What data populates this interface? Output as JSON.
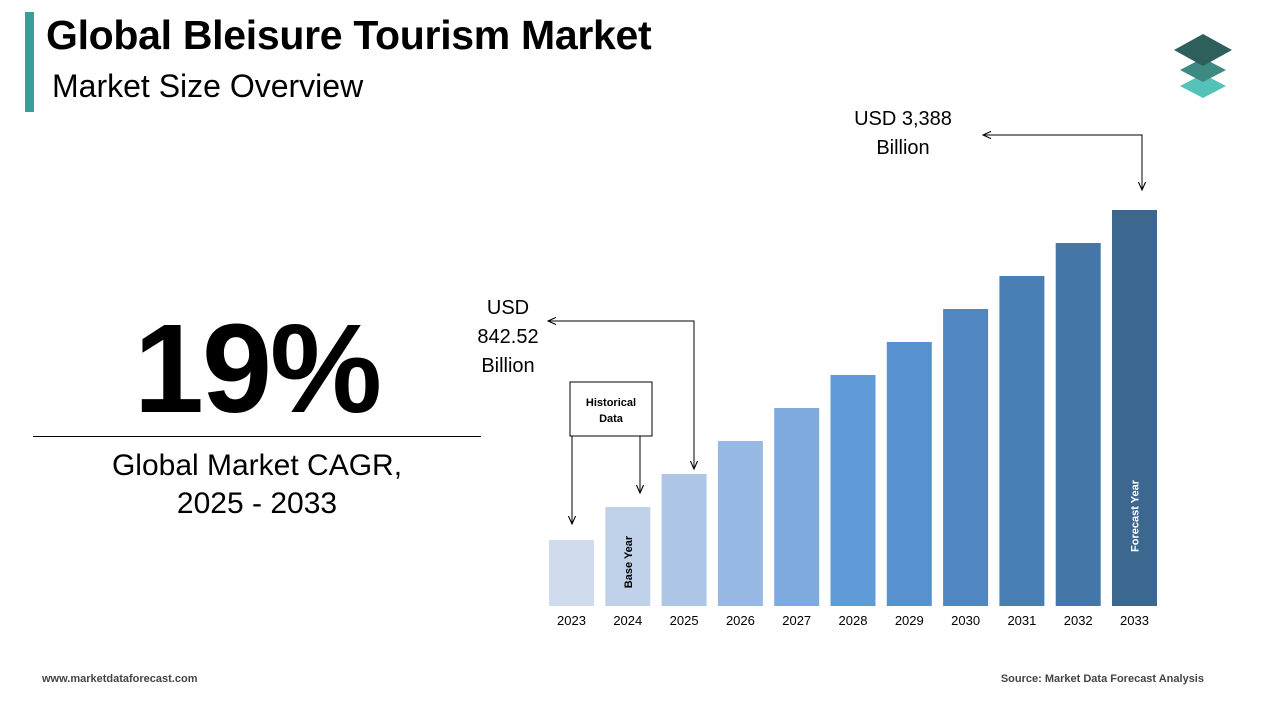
{
  "header": {
    "title": "Global Bleisure Tourism Market",
    "subtitle": "Market Size Overview"
  },
  "cagr": {
    "value": "19%",
    "label_line1": "Global Market CAGR,",
    "label_line2": "2025 - 2033"
  },
  "chart_data": {
    "type": "bar",
    "categories": [
      "2023",
      "2024",
      "2025",
      "2026",
      "2027",
      "2028",
      "2029",
      "2030",
      "2031",
      "2032",
      "2033"
    ],
    "values": [
      1,
      2,
      3,
      4,
      5,
      6,
      7,
      8,
      9,
      10,
      11
    ],
    "values_note_hidden": true,
    "colors": [
      "#d0dcee",
      "#c0d2ea",
      "#adc6e6",
      "#96b8e2",
      "#7eaae0",
      "#5f9bd9",
      "#5891cf",
      "#5087c2",
      "#4a7fb6",
      "#4476a8",
      "#3c6890"
    ],
    "annotations": {
      "start_label_line1": "USD",
      "start_label_line2": "842.52",
      "start_label_line3": "Billion",
      "end_label_line1": "USD 3,388",
      "end_label_line2": "Billion",
      "historical_line1": "Historical",
      "historical_line2": "Data",
      "base_year": "Base Year",
      "forecast_year": "Forecast Year"
    }
  },
  "logo_colors": [
    "#2f5f5a",
    "#3d8a82",
    "#55c2b8"
  ],
  "footer": {
    "website": "www.marketdataforecast.com",
    "source": "Source: Market Data Forecast Analysis"
  }
}
